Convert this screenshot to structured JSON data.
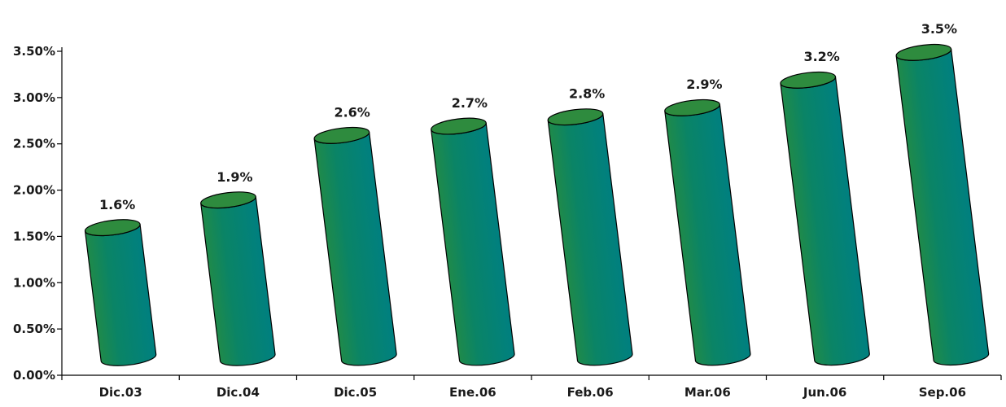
{
  "colors": {
    "bar_body_left": "#1f8a4a",
    "bar_body_right": "#008080",
    "bar_top": "#2e8b3e",
    "bar_outline": "#000000",
    "axis": "#000000",
    "text": "#1a1a1a"
  },
  "chart_data": {
    "type": "bar",
    "style": "3d-cylinder",
    "grid": false,
    "categories": [
      "Dic.03",
      "Dic.04",
      "Dic.05",
      "Ene.06",
      "Feb.06",
      "Mar.06",
      "Jun.06",
      "Sep.06"
    ],
    "values": [
      1.6,
      1.9,
      2.6,
      2.7,
      2.8,
      2.9,
      3.2,
      3.5
    ],
    "data_labels": [
      "1.6%",
      "1.9%",
      "2.6%",
      "2.7%",
      "2.8%",
      "2.9%",
      "3.2%",
      "3.5%"
    ],
    "yticks": [
      "0.00%",
      "0.50%",
      "1.00%",
      "1.50%",
      "2.00%",
      "2.50%",
      "3.00%",
      "3.50%"
    ],
    "ylim": [
      0,
      3.5
    ],
    "title": "",
    "xlabel": "",
    "ylabel": ""
  }
}
